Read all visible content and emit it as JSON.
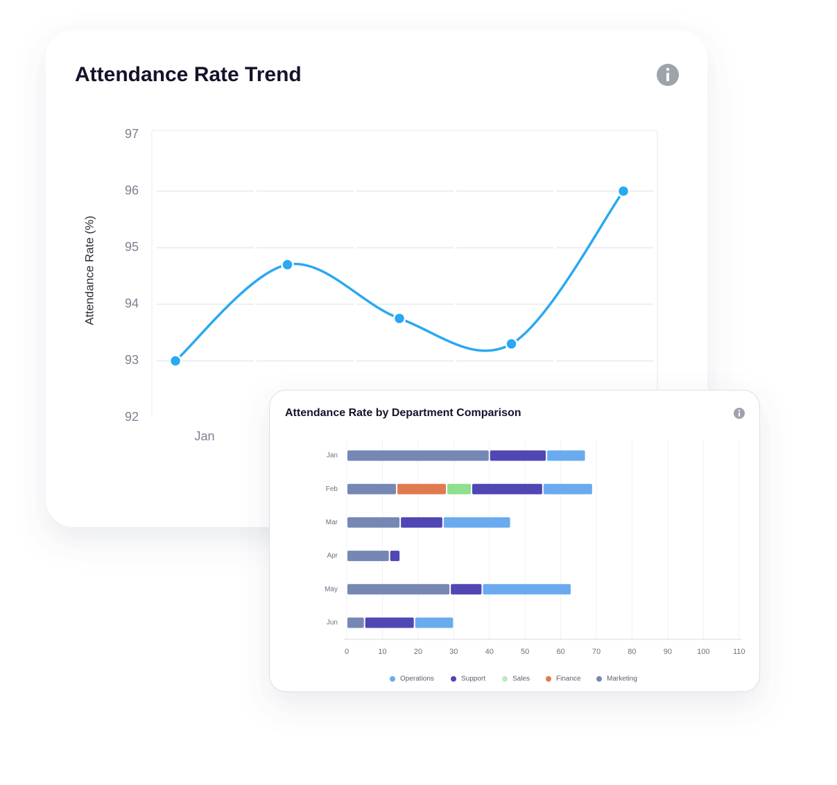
{
  "chart_data": [
    {
      "type": "line",
      "title": "Attendance Rate Trend",
      "y_label": "Attendance Rate (%)",
      "categories": [
        "Jan",
        null,
        null,
        null,
        null
      ],
      "values": [
        93.0,
        94.7,
        93.75,
        93.3,
        96.0
      ],
      "color": "#2aa8f2",
      "ylim": [
        92,
        97
      ],
      "yticks": [
        92,
        93,
        94,
        95,
        96,
        97
      ],
      "grid": true
    },
    {
      "type": "stacked-barh",
      "title": "Attendance Rate by Department Comparison",
      "categories": [
        "Jan",
        "Feb",
        "Mar",
        "Apr",
        "May",
        "Jun"
      ],
      "series": [
        {
          "name": "Operations",
          "color": "#6aabf0",
          "values": [
            11,
            14,
            19,
            0,
            25,
            11
          ]
        },
        {
          "name": "Support",
          "color": "#5046b4",
          "values": [
            16,
            20,
            12,
            3,
            9,
            14
          ]
        },
        {
          "name": "Sales",
          "color": "#8edf8e",
          "values": [
            0,
            7,
            0,
            0,
            0,
            0
          ]
        },
        {
          "name": "Finance",
          "color": "#e07b50",
          "values": [
            0,
            14,
            0,
            0,
            0,
            0
          ]
        },
        {
          "name": "Marketing",
          "color": "#7687b4",
          "values": [
            40,
            14,
            15,
            12,
            29,
            5
          ]
        }
      ],
      "xlim": [
        0,
        112
      ],
      "xticks": [
        0,
        10,
        20,
        30,
        40,
        50,
        60,
        70,
        80,
        90,
        100,
        110
      ],
      "grid": true,
      "legend": "bottom"
    }
  ]
}
